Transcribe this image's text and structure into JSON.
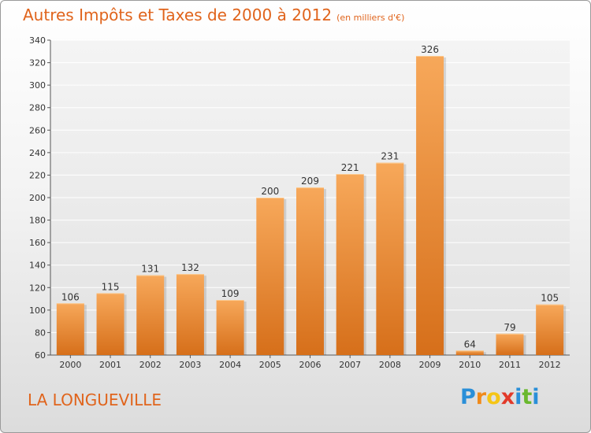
{
  "header": {
    "title": "Autres Impôts et Taxes de 2000 à 2012",
    "unit": "(en milliers d'€)"
  },
  "footer": {
    "city": "LA LONGUEVILLE",
    "logo_letters": [
      "P",
      "r",
      "o",
      "x",
      "i",
      "t",
      "i"
    ],
    "logo_colors": [
      "#2a8fd8",
      "#f08a1a",
      "#f5c516",
      "#e23a2a",
      "#2a8fd8",
      "#6ab82e",
      "#2a8fd8"
    ]
  },
  "colors": {
    "title": "#e0641c",
    "bar_light": "#f7a85a",
    "bar_dark": "#d66f1a",
    "axis": "#555555"
  },
  "chart_data": {
    "type": "bar",
    "title": "Autres Impôts et Taxes de 2000 à 2012",
    "subtitle": "(en milliers d'€)",
    "categories": [
      "2000",
      "2001",
      "2002",
      "2003",
      "2004",
      "2005",
      "2006",
      "2007",
      "2008",
      "2009",
      "2010",
      "2011",
      "2012"
    ],
    "values": [
      106,
      115,
      131,
      132,
      109,
      200,
      209,
      221,
      231,
      326,
      64,
      79,
      105
    ],
    "ylim": [
      60,
      340
    ],
    "yticks": [
      60,
      80,
      100,
      120,
      140,
      160,
      180,
      200,
      220,
      240,
      260,
      280,
      300,
      320,
      340
    ],
    "grid": true,
    "xlabel": "",
    "ylabel": ""
  }
}
